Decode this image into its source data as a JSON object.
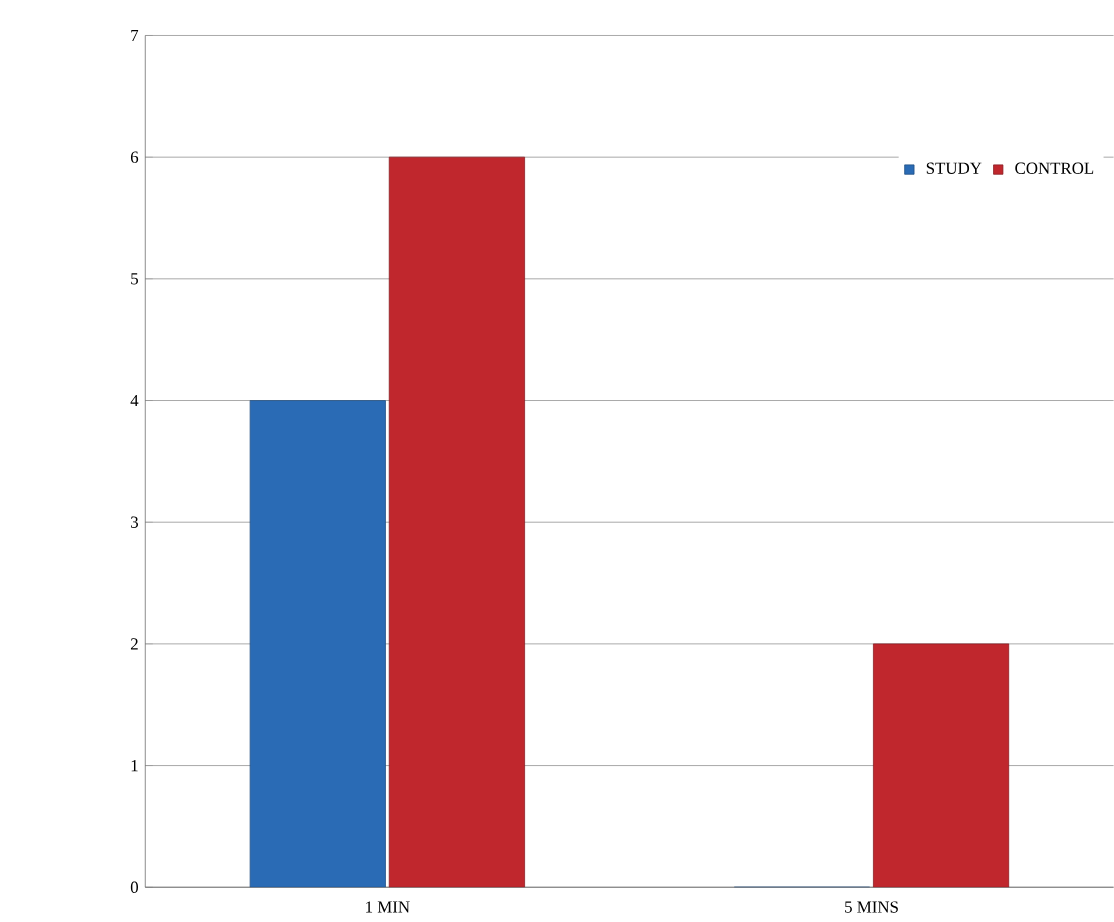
{
  "chart_data": {
    "type": "bar",
    "categories": [
      "1 MIN",
      "5 MINS"
    ],
    "series": [
      {
        "name": "STUDY",
        "color": "#2a6bb5",
        "values": [
          4,
          0
        ]
      },
      {
        "name": "CONTROL",
        "color": "#c0272d",
        "values": [
          6,
          2
        ]
      }
    ],
    "ylim": [
      0,
      7
    ],
    "yticks": [
      0,
      1,
      2,
      3,
      4,
      5,
      6,
      7
    ],
    "grid": "y",
    "legend": "top right"
  }
}
